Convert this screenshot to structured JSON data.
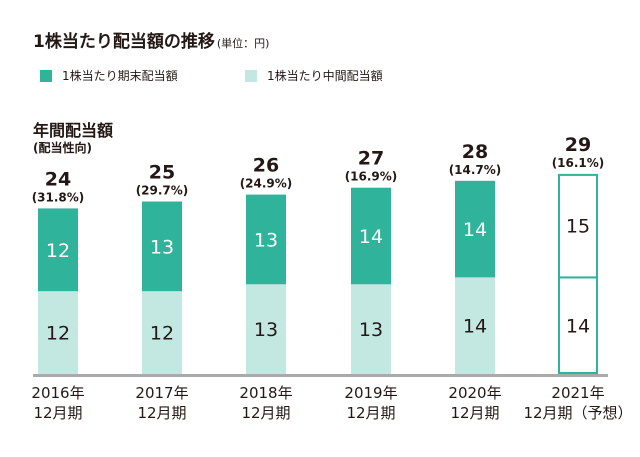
{
  "title": "1株当たり配当額の推移",
  "unit": "(単位：円)",
  "legend": [
    {
      "label": "1株当たり期末配当額",
      "color": "#2fb39b"
    },
    {
      "label": "1株当たり中間配当額",
      "color": "#c3e8e2"
    }
  ],
  "ylabel": "年間配当額",
  "ysub": "(配当性向)",
  "colors": {
    "year_end": "#2fb39b",
    "interim": "#c3e8e2",
    "forecast_outline": "#2fb39b",
    "baseline": "#aaaaaa",
    "text": "#231815"
  },
  "chart_data": {
    "type": "bar",
    "stacked": true,
    "categories": [
      "2016年\n12月期",
      "2017年\n12月期",
      "2018年\n12月期",
      "2019年\n12月期",
      "2020年\n12月期",
      "2021年\n12月期（予想）"
    ],
    "series": [
      {
        "name": "1株当たり中間配当額",
        "values": [
          12,
          12,
          13,
          13,
          14,
          14
        ]
      },
      {
        "name": "1株当たり期末配当額",
        "values": [
          12,
          13,
          13,
          14,
          14,
          15
        ]
      }
    ],
    "totals": [
      24,
      25,
      26,
      27,
      28,
      29
    ],
    "payout_ratios": [
      "(31.8%)",
      "(29.7%)",
      "(24.9%)",
      "(16.9%)",
      "(14.7%)",
      "(16.1%)"
    ],
    "forecast_index": 5,
    "ylim": [
      0,
      30
    ],
    "grid": false
  }
}
